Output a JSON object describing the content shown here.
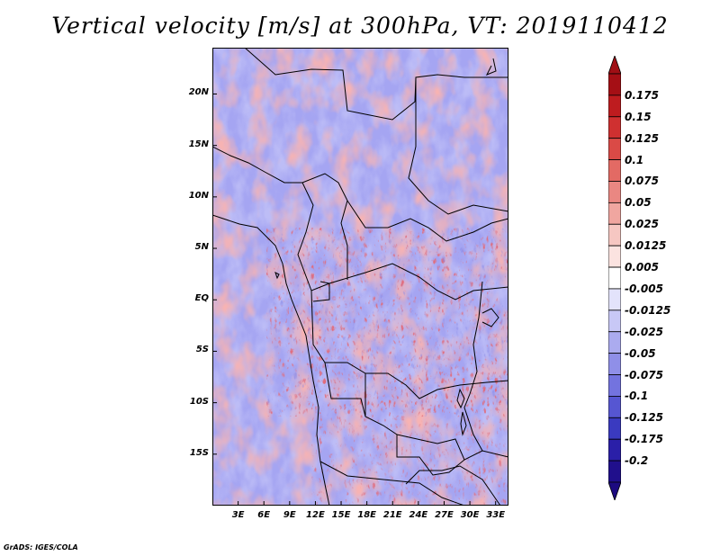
{
  "title": "Vertical velocity [m/s] at 300hPa, VT: 2019110412",
  "credit": "GrADS: IGES/COLA",
  "map": {
    "lat_labels": [
      "20N",
      "15N",
      "10N",
      "5N",
      "EQ",
      "5S",
      "10S",
      "15S"
    ],
    "lat_values": [
      20,
      15,
      10,
      5,
      0,
      -5,
      -10,
      -15
    ],
    "lon_labels": [
      "3E",
      "6E",
      "9E",
      "12E",
      "15E",
      "18E",
      "21E",
      "24E",
      "27E",
      "30E",
      "33E"
    ],
    "lon_values": [
      3,
      6,
      9,
      12,
      15,
      18,
      21,
      24,
      27,
      30,
      33
    ],
    "lat_range": [
      -20,
      24.5
    ],
    "lon_range": [
      0,
      34.5
    ]
  },
  "colorbar": {
    "labels": [
      "0.175",
      "0.15",
      "0.125",
      "0.1",
      "0.075",
      "0.05",
      "0.025",
      "0.0125",
      "0.005",
      "-0.005",
      "-0.0125",
      "-0.025",
      "-0.05",
      "-0.075",
      "-0.1",
      "-0.125",
      "-0.175",
      "-0.2"
    ],
    "colors": [
      "#a50f15",
      "#be1c1f",
      "#cf3030",
      "#da4a46",
      "#e36a64",
      "#ea8782",
      "#f0a6a0",
      "#f6c7c2",
      "#fbe3e0",
      "#ffffff",
      "#e3e3fb",
      "#c8c8f6",
      "#ababef",
      "#8f8fe8",
      "#7373df",
      "#5656d2",
      "#3a3ac0",
      "#2a1fa8",
      "#200f8c"
    ],
    "top_color": "#a00f15",
    "bottom_color": "#1c0a80"
  }
}
